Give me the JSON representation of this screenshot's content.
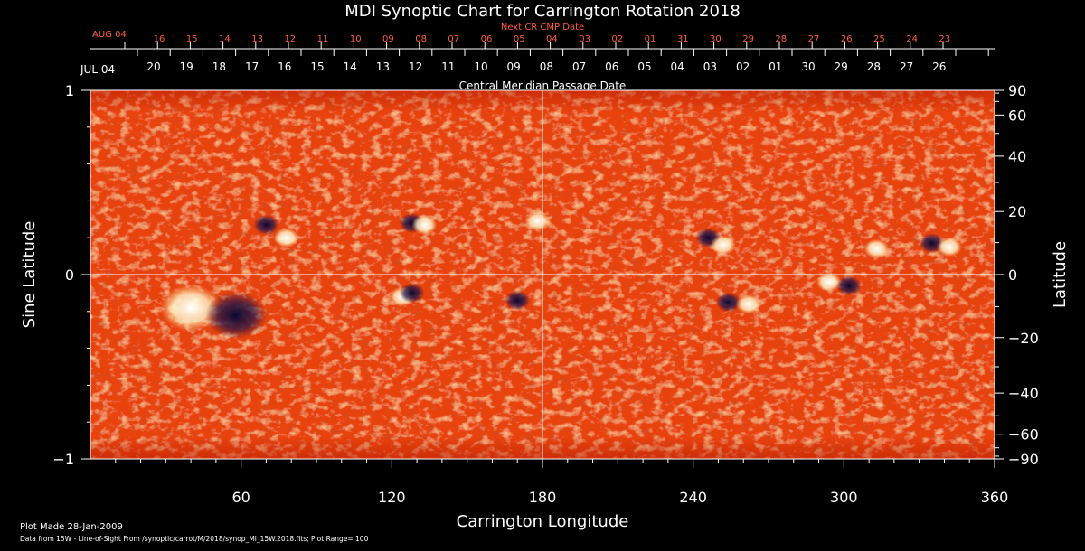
{
  "chart_data": {
    "type": "heatmap",
    "title": "MDI Synoptic Chart for Carrington Rotation 2018",
    "xlabel": "Carrington Longitude",
    "ylabel_left": "Sine Latitude",
    "ylabel_right": "Latitude",
    "xlim": [
      0,
      360
    ],
    "ylim": [
      -1,
      1
    ],
    "x_ticks": [
      60,
      120,
      180,
      240,
      300,
      360
    ],
    "y_ticks": [
      -1,
      0,
      1
    ],
    "y_tick_labels": [
      "−1",
      "0",
      "1"
    ],
    "right_ticks_deg": [
      90,
      60,
      40,
      20,
      0,
      -20,
      -40,
      -60,
      -90
    ],
    "right_tick_labels": [
      "90",
      "60",
      "40",
      "20",
      "0",
      "−20",
      "−40",
      "−60",
      "−90"
    ],
    "reference_lines": {
      "equator": 0,
      "longitude": 180
    },
    "colors": {
      "background": "#000000",
      "map_base": "#e8420e",
      "positive": "#ffffff",
      "negative": "#1a1440",
      "red_text": "#ff5b3a"
    },
    "top_axis": {
      "label": "Next CR CMP Date",
      "start_label": "AUG 04",
      "date_labels": [
        "16",
        "15",
        "14",
        "13",
        "12",
        "11",
        "10",
        "09",
        "08",
        "07",
        "06",
        "05",
        "04",
        "03",
        "02",
        "01",
        "31",
        "30",
        "29",
        "28",
        "27",
        "26",
        "25",
        "24",
        "23"
      ]
    },
    "bottom_axis": {
      "label": "Central Meridian Passage Date",
      "start_label": "JUL 04",
      "date_labels": [
        "20",
        "19",
        "18",
        "17",
        "16",
        "15",
        "14",
        "13",
        "12",
        "11",
        "10",
        "09",
        "08",
        "07",
        "06",
        "05",
        "04",
        "03",
        "02",
        "01",
        "30",
        "29",
        "28",
        "27",
        "26"
      ]
    },
    "active_regions": [
      {
        "lon": 40,
        "lat": -0.18,
        "polarity": "positive"
      },
      {
        "lon": 58,
        "lat": -0.22,
        "polarity": "negative"
      },
      {
        "lon": 70,
        "lat": 0.27,
        "polarity": "negative"
      },
      {
        "lon": 78,
        "lat": 0.2,
        "polarity": "positive"
      },
      {
        "lon": 124,
        "lat": -0.12,
        "polarity": "positive"
      },
      {
        "lon": 128,
        "lat": -0.1,
        "polarity": "negative"
      },
      {
        "lon": 128,
        "lat": 0.28,
        "polarity": "negative"
      },
      {
        "lon": 133,
        "lat": 0.27,
        "polarity": "positive"
      },
      {
        "lon": 170,
        "lat": -0.14,
        "polarity": "negative"
      },
      {
        "lon": 178,
        "lat": 0.29,
        "polarity": "positive"
      },
      {
        "lon": 246,
        "lat": 0.2,
        "polarity": "negative"
      },
      {
        "lon": 252,
        "lat": 0.16,
        "polarity": "positive"
      },
      {
        "lon": 254,
        "lat": -0.15,
        "polarity": "negative"
      },
      {
        "lon": 262,
        "lat": -0.16,
        "polarity": "positive"
      },
      {
        "lon": 294,
        "lat": -0.04,
        "polarity": "positive"
      },
      {
        "lon": 302,
        "lat": -0.06,
        "polarity": "negative"
      },
      {
        "lon": 313,
        "lat": 0.14,
        "polarity": "positive"
      },
      {
        "lon": 335,
        "lat": 0.17,
        "polarity": "negative"
      },
      {
        "lon": 342,
        "lat": 0.15,
        "polarity": "positive"
      }
    ]
  },
  "footer": {
    "plot_made": "Plot Made 28-Jan-2009",
    "data_source": "Data from 15W - Line-of-Sight From /synoptic/carrot/M/2018/synop_Ml_15W.2018.fits; Plot Range=  100"
  }
}
